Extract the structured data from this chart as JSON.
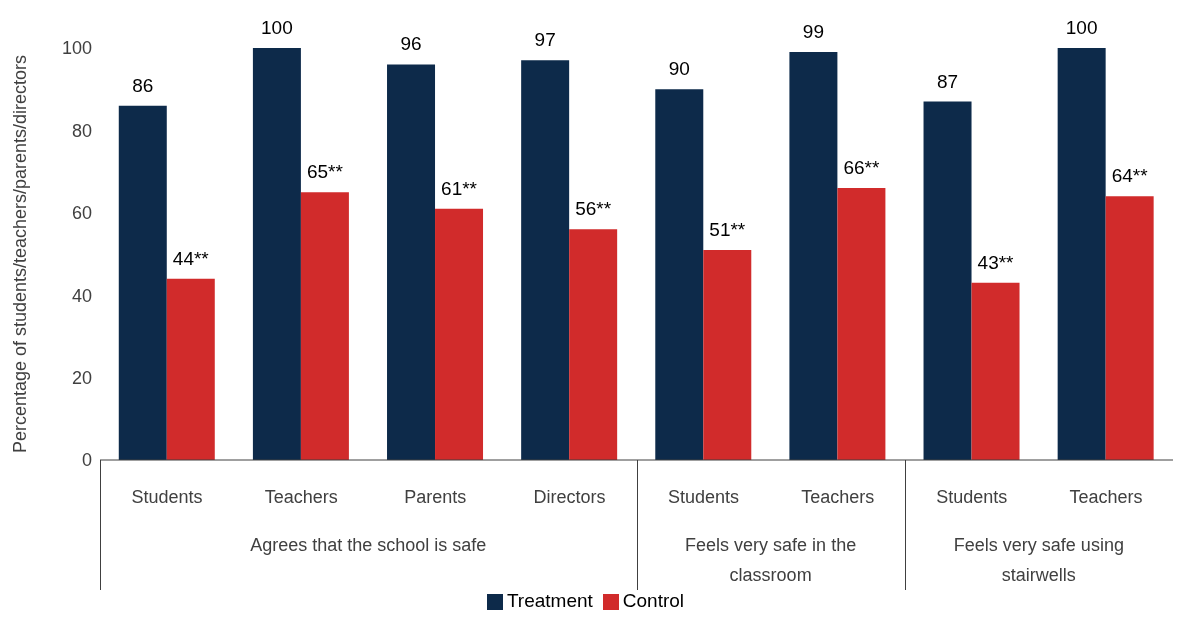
{
  "chart_data": {
    "type": "bar",
    "ylabel": "Percentage of students/teachers/parents/directors",
    "categories": [
      "Students",
      "Teachers",
      "Parents",
      "Directors",
      "Students",
      "Teachers",
      "Students",
      "Teachers"
    ],
    "series": [
      {
        "name": "Treatment",
        "color": "#0d2a4a",
        "values": [
          86,
          100,
          96,
          97,
          90,
          99,
          87,
          100
        ],
        "value_labels": [
          "86",
          "100",
          "96",
          "97",
          "90",
          "99",
          "87",
          "100"
        ]
      },
      {
        "name": "Control",
        "color": "#d12b2b",
        "values": [
          44,
          65,
          61,
          56,
          51,
          66,
          43,
          64
        ],
        "value_labels": [
          "44**",
          "65**",
          "61**",
          "56**",
          "51**",
          "66**",
          "43**",
          "64**"
        ]
      }
    ],
    "annotations": [
      "Agrees that the school is safe",
      "Feels very safe in the classroom",
      "Feels very safe using stairwells"
    ],
    "ylim": [
      0,
      100
    ],
    "yticks": [
      0,
      20,
      40,
      60,
      80,
      100
    ],
    "grid": false,
    "legend": "bottom"
  }
}
